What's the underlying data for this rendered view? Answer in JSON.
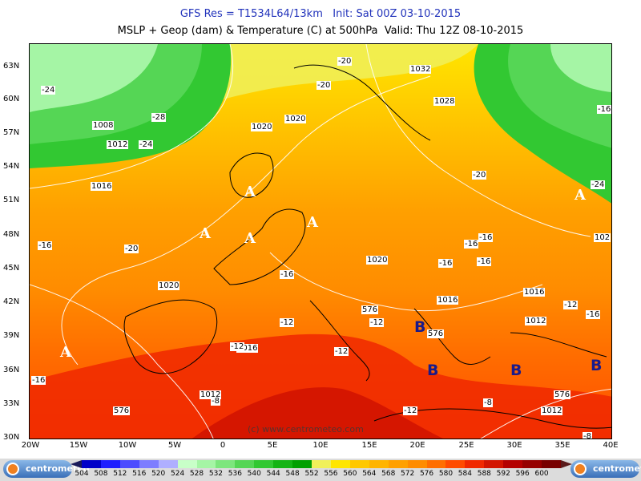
{
  "header": {
    "line1": "GFS Res = T1534L64/13km   Init: Sat 00Z 03-10-2015",
    "line2": "MSLP + Geop (dam) & Temperature (C) at 500hPa  Valid: Thu 12Z 08-10-2015"
  },
  "axes": {
    "lat_labels": [
      "63N",
      "60N",
      "57N",
      "54N",
      "51N",
      "48N",
      "45N",
      "42N",
      "39N",
      "36N",
      "33N",
      "30N"
    ],
    "lon_labels": [
      "20W",
      "15W",
      "10W",
      "5W",
      "0",
      "5E",
      "10E",
      "15E",
      "20E",
      "25E",
      "30E",
      "35E",
      "40E"
    ]
  },
  "map_labels": {
    "pressure": [
      "1032",
      "1028",
      "1020",
      "1020",
      "1016",
      "1008",
      "1012",
      "1020",
      "1020",
      "1016",
      "1016",
      "1012",
      "1016",
      "1012",
      "1012",
      "102"
    ],
    "geopotential": [
      "576",
      "576",
      "576",
      "576"
    ],
    "temperature": [
      "-20",
      "-20",
      "-28",
      "-24",
      "-20",
      "-16",
      "-20",
      "-16",
      "-16",
      "-16",
      "-16",
      "-16",
      "-12",
      "-12",
      "-12",
      "-12",
      "-12",
      "-16",
      "-8",
      "-8",
      "-24",
      "-24",
      "-16",
      "-16",
      "-12",
      "-8"
    ],
    "high_markers": [
      "A",
      "A",
      "A",
      "A",
      "A",
      "A"
    ],
    "low_markers": [
      "B",
      "B",
      "B",
      "B",
      "B"
    ],
    "watermark": "(c) www.centrometeo.com"
  },
  "colorbar": {
    "ticks": [
      "504",
      "508",
      "512",
      "516",
      "520",
      "524",
      "528",
      "532",
      "536",
      "540",
      "544",
      "548",
      "552",
      "556",
      "560",
      "564",
      "568",
      "572",
      "576",
      "580",
      "584",
      "588",
      "592",
      "596",
      "600"
    ],
    "colors": [
      "#0000c8",
      "#1e1eff",
      "#4b4bff",
      "#7d7dff",
      "#afafff",
      "#c8ffc8",
      "#a5f5a5",
      "#7de67d",
      "#55d655",
      "#32c832",
      "#14b414",
      "#00a000",
      "#f0f05a",
      "#ffe600",
      "#ffc800",
      "#ffb400",
      "#ffa000",
      "#ff8c00",
      "#ff6e00",
      "#ff4b00",
      "#f02800",
      "#d21400",
      "#b40000",
      "#960000",
      "#780000"
    ],
    "logo_left": "centrometeo",
    "logo_right": "centrometeo"
  }
}
